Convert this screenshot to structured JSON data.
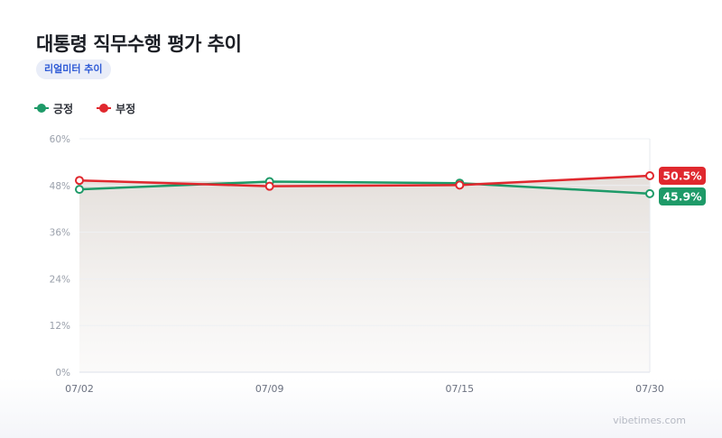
{
  "title": "대통령 직무수행 평가 추이",
  "badge": "리얼미터 추이",
  "legend": [
    {
      "name": "긍정",
      "color": "#1e9a68"
    },
    {
      "name": "부정",
      "color": "#e0282e"
    }
  ],
  "watermark": "vibetimes.com",
  "chart_data": {
    "type": "line",
    "title": "대통령 직무수행 평가 추이",
    "categories": [
      "07/02",
      "07/09",
      "07/15",
      "07/30"
    ],
    "series": [
      {
        "name": "긍정",
        "color": "#1e9a68",
        "values": [
          47.0,
          49.0,
          48.6,
          45.9
        ],
        "end_label": "45.9%"
      },
      {
        "name": "부정",
        "color": "#e0282e",
        "values": [
          49.3,
          47.8,
          48.1,
          50.5
        ],
        "end_label": "50.5%"
      }
    ],
    "y_ticks": [
      "0%",
      "12%",
      "24%",
      "36%",
      "48%",
      "60%"
    ],
    "ylim": [
      0,
      60
    ],
    "grid": true,
    "legend_position": "top-left"
  }
}
